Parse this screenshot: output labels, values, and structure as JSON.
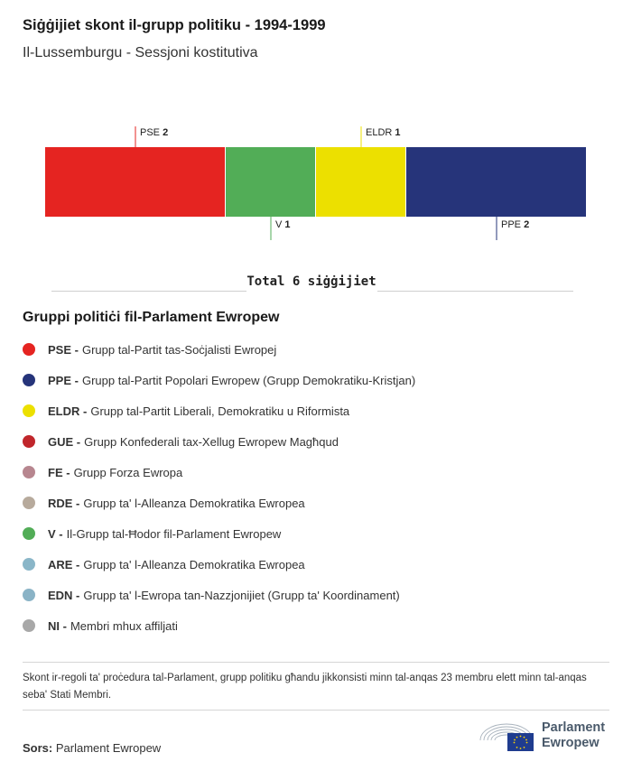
{
  "title": "Siġġijiet skont il-grupp politiku - 1994-1999",
  "subtitle": "Il-Lussemburgu - Sessjoni kostitutiva",
  "total_label": "Total 6 siġġijiet",
  "chart_data": {
    "type": "bar",
    "orientation": "stacked-horizontal",
    "title": "Siġġijiet skont il-grupp politiku - 1994-1999",
    "subtitle": "Il-Lussemburgu - Sessjoni kostitutiva",
    "categories": [
      "PSE",
      "V",
      "ELDR",
      "PPE"
    ],
    "values": [
      2,
      1,
      1,
      2
    ],
    "colors": [
      "#e52421",
      "#52ad57",
      "#ece000",
      "#26347a"
    ],
    "label_positions": [
      "top",
      "bottom",
      "top",
      "bottom"
    ],
    "total": 6,
    "grid": false
  },
  "legend_title": "Gruppi politiċi fil-Parlament Ewropew",
  "legend": [
    {
      "abbr": "PSE -",
      "label": "Grupp tal-Partit tas-Soċjalisti Ewropej",
      "color": "#e52421"
    },
    {
      "abbr": "PPE -",
      "label": "Grupp tal-Partit Popolari Ewropew (Grupp Demokratiku-Kristjan)",
      "color": "#26347a"
    },
    {
      "abbr": "ELDR -",
      "label": "Grupp tal-Partit Liberali, Demokratiku u Riformista",
      "color": "#ece000"
    },
    {
      "abbr": "GUE -",
      "label": "Grupp Konfederali tax-Xellug Ewropew Magħqud",
      "color": "#c0262b"
    },
    {
      "abbr": "FE -",
      "label": "Grupp Forza Ewropa",
      "color": "#b7868f"
    },
    {
      "abbr": "RDE -",
      "label": "Grupp ta' l-Alleanza Demokratika Ewropea",
      "color": "#b7aa9c"
    },
    {
      "abbr": "V -",
      "label": "Il-Grupp tal-Ħodor fil-Parlament Ewropew",
      "color": "#52ad57"
    },
    {
      "abbr": "ARE -",
      "label": "Grupp ta' l-Alleanza Demokratika Ewropea",
      "color": "#8ab6c8"
    },
    {
      "abbr": "EDN -",
      "label": "Grupp ta' l-Ewropa tan-Nazzjonijiet (Grupp ta' Koordinament)",
      "color": "#8ab3c6"
    },
    {
      "abbr": "NI -",
      "label": "Membri mhux affiljati",
      "color": "#a8a8a8"
    }
  ],
  "note": "Skont ir-regoli ta' proċedura tal-Parlament, grupp politiku għandu jikkonsisti minn tal-anqas 23 membru elett minn tal-anqas seba' Stati Membri.",
  "source": {
    "label": "Sors:",
    "value": "Parlament Ewropew"
  },
  "logo": {
    "line1": "Parlament",
    "line2": "Ewropew"
  }
}
